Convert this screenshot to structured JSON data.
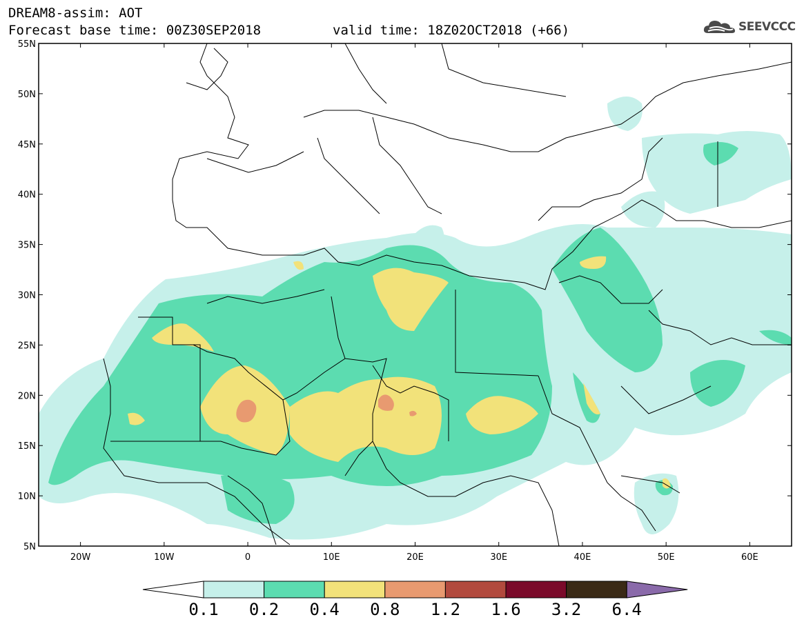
{
  "header": {
    "title_line1": "DREAM8-assim: AOT",
    "title_line2": "Forecast base time: 00Z30SEP2018",
    "valid_time": "valid time: 18Z02OCT2018 (+66)",
    "logo_text": "SEEVCCC"
  },
  "map": {
    "projection": "equirectangular",
    "lon_range": [
      -25,
      65
    ],
    "lat_range": [
      5,
      55
    ],
    "lat_labels": [
      "55N",
      "50N",
      "45N",
      "40N",
      "35N",
      "30N",
      "25N",
      "20N",
      "15N",
      "10N",
      "5N"
    ],
    "lat_values": [
      55,
      50,
      45,
      40,
      35,
      30,
      25,
      20,
      15,
      10,
      5
    ],
    "lon_labels": [
      "20W",
      "10W",
      "0",
      "10E",
      "20E",
      "30E",
      "40E",
      "50E",
      "60E"
    ],
    "lon_values": [
      -20,
      -10,
      0,
      10,
      20,
      30,
      40,
      50,
      60
    ]
  },
  "colorbar": {
    "labels": [
      "0.1",
      "0.2",
      "0.4",
      "0.8",
      "1.2",
      "1.6",
      "3.2",
      "6.4"
    ],
    "colors": [
      "#ffffff",
      "#c6f0ea",
      "#5cdcb0",
      "#f2e27a",
      "#e89a70",
      "#b24a3e",
      "#7a0a2a",
      "#3a2a16",
      "#8a6aaa"
    ]
  },
  "colors": {
    "level_0_1": "#c6f0ea",
    "level_0_2": "#5cdcb0",
    "level_0_4": "#f2e27a",
    "level_0_8": "#e89a70",
    "border": "#000000",
    "grid": "#bdbdbd"
  }
}
